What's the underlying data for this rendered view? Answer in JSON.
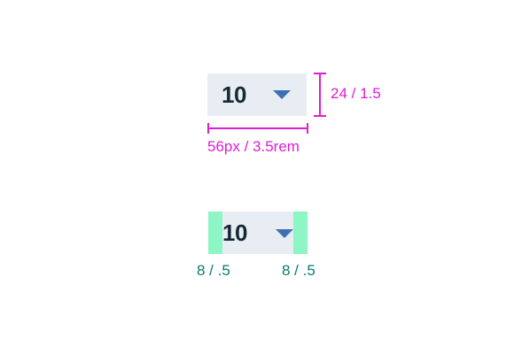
{
  "select_top": {
    "value": "10",
    "caret_icon": "caret-down-icon"
  },
  "measurements": {
    "height_label": "24 / 1.5",
    "width_label": "56px / 3.5rem"
  },
  "select_bottom": {
    "value": "10",
    "caret_icon": "caret-down-icon"
  },
  "padding": {
    "left_label": "8 / .5",
    "right_label": "8 / .5"
  },
  "colors": {
    "field_background": "#e8edf3",
    "value_text": "#152935",
    "caret": "#3d70b2",
    "measure_magenta": "#e01cd5",
    "padding_green": "#8ef5c5",
    "padding_label_teal": "#0a7a6c"
  }
}
